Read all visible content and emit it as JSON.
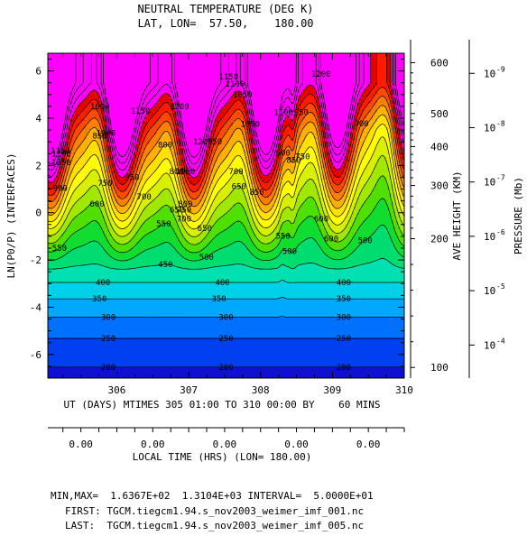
{
  "chart_data": {
    "type": "heatmap",
    "title": "NEUTRAL TEMPERATURE (DEG K)",
    "subtitle": "LAT, LON=  57.50,    180.00",
    "ylabel": "LN(P0/P) (INTERFACES)",
    "xlabel": "UT (DAYS) MTIMES 305 01:00 TO 310 00:00 BY    60 MINS",
    "xlim": [
      305.04,
      310.0
    ],
    "ylim": [
      -7.0,
      6.75
    ],
    "x_ticks": [
      "306",
      "307",
      "308",
      "309",
      "310"
    ],
    "y_ticks": [
      "-6",
      "-4",
      "-2",
      "0",
      "2",
      "4",
      "6"
    ],
    "contour_interval": 50,
    "color_levels": [
      150,
      200,
      250,
      300,
      350,
      400,
      450,
      500,
      550,
      600,
      650,
      700,
      750,
      800,
      850,
      900,
      950,
      1000,
      1050,
      1100,
      1150
    ],
    "colors": [
      "#1010d0",
      "#0040f0",
      "#0070ff",
      "#00a8ff",
      "#00d0e8",
      "#00e0b0",
      "#00dd70",
      "#10dd30",
      "#50e000",
      "#a0e800",
      "#d8f000",
      "#ffff00",
      "#ffe000",
      "#ffb000",
      "#ff8000",
      "#ff4a00",
      "#ff1a00",
      "#e80000",
      "#ff00ff"
    ],
    "contour_labels": [
      "200",
      "250",
      "300",
      "350",
      "400",
      "450",
      "500",
      "550",
      "600",
      "650",
      "700",
      "750",
      "800",
      "850",
      "900",
      "950",
      "1000",
      "1050",
      "1100",
      "1150",
      "1200"
    ],
    "local_time": {
      "label": "LOCAL TIME (HRS) (LON= 180.00)",
      "tick_labels": [
        "0.00",
        "0.00",
        "0.00",
        "0.00",
        "0.00"
      ],
      "tick_x": [
        305.5,
        306.5,
        307.5,
        308.5,
        309.5
      ]
    },
    "height_axis": {
      "label": "AVE HEIGHT (KM)",
      "tick_labels": [
        "100",
        "200",
        "300",
        "400",
        "500",
        "600"
      ],
      "tick_lnp": [
        -6.55,
        -1.1,
        1.15,
        2.8,
        4.2,
        6.35
      ]
    },
    "pressure_axis": {
      "label": "PRESSURE (Mb)",
      "tick_labels": [
        "10",
        "10",
        "10",
        "10",
        "10",
        "10"
      ],
      "tick_exponents": [
        "-4",
        "-5",
        "-6",
        "-7",
        "-8",
        "-9"
      ],
      "tick_lnp": [
        -5.6,
        -3.3,
        -1.0,
        1.3,
        3.6,
        5.9
      ]
    },
    "footer": {
      "minmax": "MIN,MAX=  1.6367E+02  1.3104E+03 INTERVAL=  5.0000E+01",
      "first": "FIRST: TGCM.tiegcm1.94.s_nov2003_weimer_imf_001.nc",
      "last": "LAST:  TGCM.tiegcm1.94.s_nov2003_weimer_imf_005.nc"
    }
  }
}
